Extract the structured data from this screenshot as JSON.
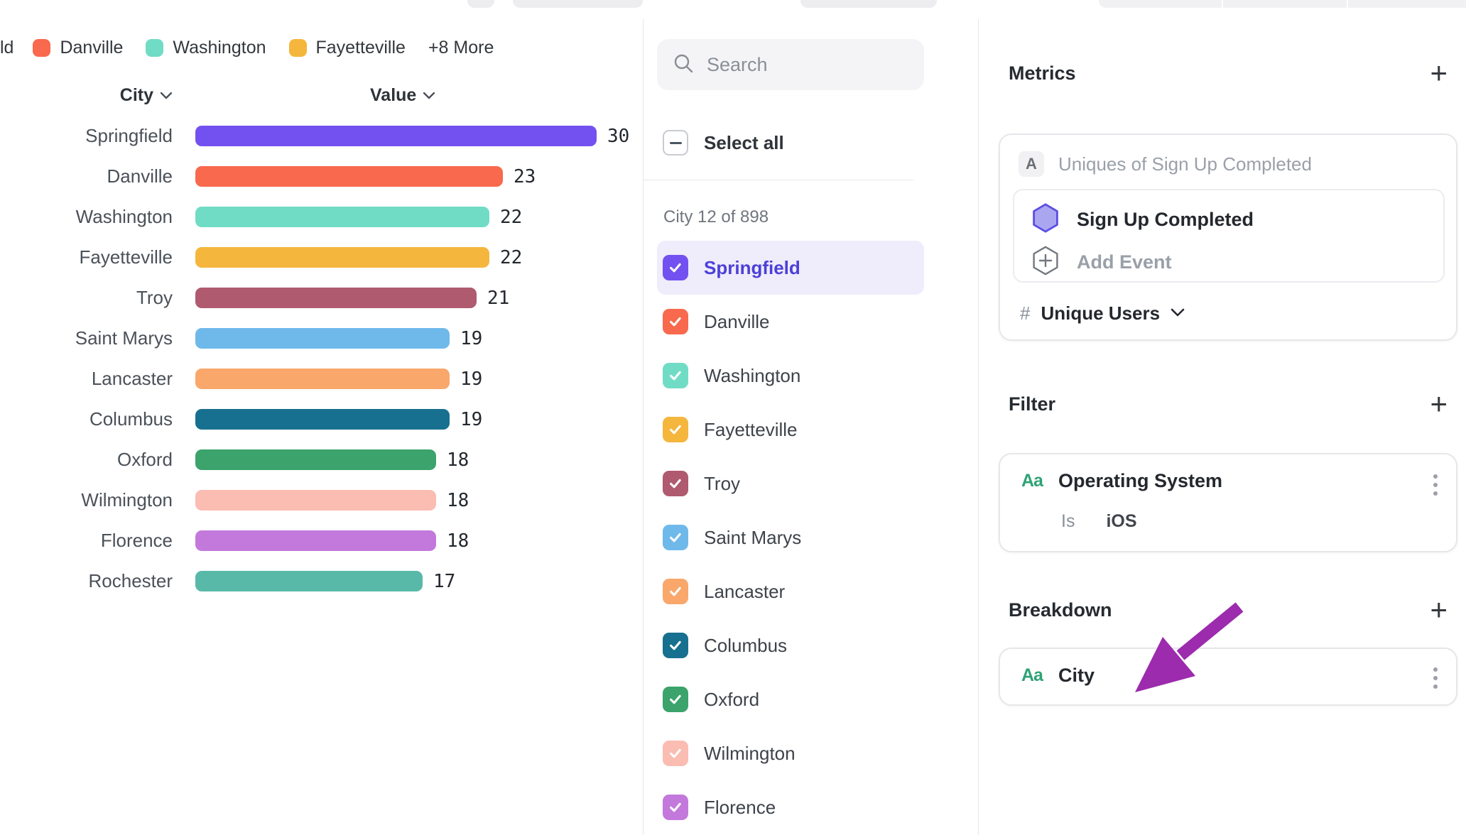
{
  "colors": {
    "accent_purple": "#7351f0",
    "selected_row_bg": "#efecfb",
    "selected_text": "#4c40d9",
    "annotation_arrow": "#9c2bad",
    "hexagon_fill": "#aba6f0",
    "hexagon_stroke": "#5b4ee4",
    "aa_green": "#2fa275"
  },
  "legend": {
    "truncated_first_label": "ld",
    "items": [
      {
        "label": "Danville",
        "color": "#f8694d"
      },
      {
        "label": "Washington",
        "color": "#71dcc6"
      },
      {
        "label": "Fayetteville",
        "color": "#f4b63d"
      }
    ],
    "more_label": "+8 More"
  },
  "chart_data": {
    "type": "bar",
    "orientation": "horizontal",
    "column_headers": {
      "category": "City",
      "value": "Value"
    },
    "categories": [
      "Springfield",
      "Danville",
      "Washington",
      "Fayetteville",
      "Troy",
      "Saint Marys",
      "Lancaster",
      "Columbus",
      "Oxford",
      "Wilmington",
      "Florence",
      "Rochester"
    ],
    "values": [
      30,
      23,
      22,
      22,
      21,
      19,
      19,
      19,
      18,
      18,
      18,
      17
    ],
    "bar_colors": [
      "#7351f0",
      "#f8694d",
      "#71dcc6",
      "#f4b63d",
      "#af5a6f",
      "#6fb9ea",
      "#f9a76b",
      "#17708f",
      "#3ba36b",
      "#fbbcb1",
      "#c379dc",
      "#58b9a9"
    ],
    "xlim": [
      0,
      30
    ],
    "grid": false,
    "value_labels": true
  },
  "city_panel": {
    "search_placeholder": "Search",
    "select_all_label": "Select all",
    "count_label": "City 12 of 898",
    "items": [
      {
        "name": "Springfield",
        "color": "#7351f0",
        "checked": true,
        "highlighted": true
      },
      {
        "name": "Danville",
        "color": "#f8694d",
        "checked": true,
        "highlighted": false
      },
      {
        "name": "Washington",
        "color": "#71dcc6",
        "checked": true,
        "highlighted": false
      },
      {
        "name": "Fayetteville",
        "color": "#f4b63d",
        "checked": true,
        "highlighted": false
      },
      {
        "name": "Troy",
        "color": "#af5a6f",
        "checked": true,
        "highlighted": false
      },
      {
        "name": "Saint Marys",
        "color": "#6fb9ea",
        "checked": true,
        "highlighted": false
      },
      {
        "name": "Lancaster",
        "color": "#f9a76b",
        "checked": true,
        "highlighted": false
      },
      {
        "name": "Columbus",
        "color": "#17708f",
        "checked": true,
        "highlighted": false
      },
      {
        "name": "Oxford",
        "color": "#3ba36b",
        "checked": true,
        "highlighted": false
      },
      {
        "name": "Wilmington",
        "color": "#fbbcb1",
        "checked": true,
        "highlighted": false
      },
      {
        "name": "Florence",
        "color": "#c379dc",
        "checked": true,
        "highlighted": false
      }
    ]
  },
  "inspector": {
    "metrics": {
      "title": "Metrics",
      "add_icon": "+",
      "badge": "A",
      "summary": "Uniques of Sign Up Completed",
      "event_name": "Sign Up Completed",
      "add_event_label": "Add Event",
      "measure_prefix": "#",
      "measure_label": "Unique Users"
    },
    "filter": {
      "title": "Filter",
      "add_icon": "+",
      "property_icon": "Aa",
      "property": "Operating System",
      "operator": "Is",
      "value": "iOS"
    },
    "breakdown": {
      "title": "Breakdown",
      "add_icon": "+",
      "property_icon": "Aa",
      "property": "City"
    }
  }
}
